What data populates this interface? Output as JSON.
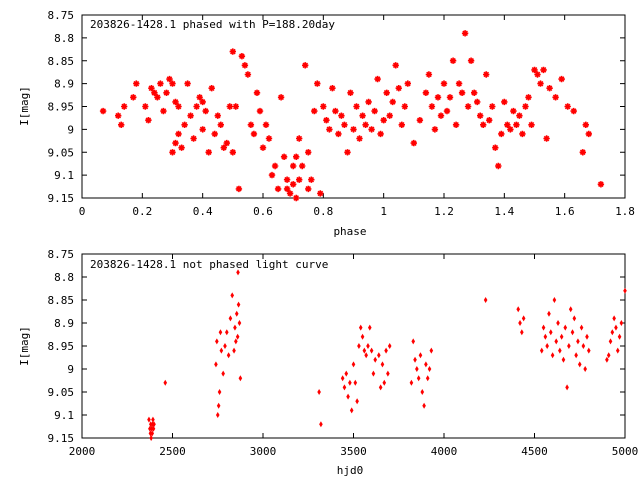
{
  "chart_data": [
    {
      "type": "scatter",
      "title": "203826-1428.1 phased with P=188.20day",
      "xlabel": "phase",
      "ylabel": "I[mag]",
      "xlim": [
        0,
        1.8
      ],
      "ylim": [
        9.15,
        8.75
      ],
      "y_inverted": true,
      "xticks": [
        "0",
        "0.2",
        "0.4",
        "0.6",
        "0.8",
        "1",
        "1.2",
        "1.4",
        "1.6",
        "1.8"
      ],
      "yticks": [
        "8.75",
        "8.8",
        "8.85",
        "8.9",
        "8.95",
        "9",
        "9.05",
        "9.1",
        "9.15"
      ],
      "grid": false,
      "marker": "star",
      "color": "#ff0000",
      "series": [
        {
          "x": [
            0.07,
            0.12,
            0.13,
            0.14,
            0.17,
            0.18,
            0.21,
            0.22,
            0.23,
            0.24,
            0.25,
            0.26,
            0.27,
            0.28,
            0.29,
            0.3,
            0.3,
            0.31,
            0.31,
            0.32,
            0.32,
            0.33,
            0.34,
            0.35,
            0.36,
            0.37,
            0.38,
            0.39,
            0.4,
            0.4,
            0.41,
            0.42,
            0.43,
            0.44,
            0.45,
            0.46,
            0.47,
            0.48,
            0.49,
            0.5,
            0.5,
            0.51,
            0.52,
            0.53,
            0.54,
            0.55,
            0.56,
            0.57,
            0.58,
            0.59,
            0.6,
            0.61,
            0.62,
            0.63,
            0.64,
            0.65,
            0.66,
            0.67,
            0.68,
            0.68,
            0.69,
            0.7,
            0.7,
            0.71,
            0.71,
            0.72,
            0.72,
            0.73,
            0.74,
            0.75,
            0.75,
            0.76,
            0.77,
            0.78,
            0.79,
            0.8,
            0.81,
            0.82,
            0.83,
            0.84,
            0.85,
            0.86,
            0.87,
            0.88,
            0.89,
            0.9,
            0.91,
            0.92,
            0.93,
            0.94,
            0.95,
            0.96,
            0.97,
            0.98,
            0.99,
            1.0,
            1.01,
            1.02,
            1.03,
            1.04,
            1.05,
            1.06,
            1.07,
            1.08,
            1.1,
            1.12,
            1.14,
            1.15,
            1.16,
            1.17,
            1.18,
            1.19,
            1.2,
            1.21,
            1.22,
            1.23,
            1.24,
            1.25,
            1.26,
            1.27,
            1.28,
            1.29,
            1.3,
            1.31,
            1.32,
            1.33,
            1.34,
            1.35,
            1.36,
            1.37,
            1.38,
            1.39,
            1.4,
            1.41,
            1.42,
            1.43,
            1.44,
            1.45,
            1.46,
            1.47,
            1.48,
            1.49,
            1.5,
            1.51,
            1.52,
            1.53,
            1.54,
            1.55,
            1.57,
            1.59,
            1.61,
            1.63,
            1.66,
            1.67,
            1.68,
            1.72
          ],
          "y": [
            8.96,
            8.97,
            8.99,
            8.95,
            8.93,
            8.9,
            8.95,
            8.98,
            8.91,
            8.92,
            8.93,
            8.9,
            8.96,
            8.92,
            8.89,
            8.9,
            9.05,
            8.94,
            9.03,
            8.95,
            9.01,
            9.04,
            8.99,
            8.9,
            8.97,
            9.02,
            8.95,
            8.93,
            8.94,
            9.0,
            8.96,
            9.05,
            8.91,
            9.01,
            8.97,
            8.99,
            9.04,
            9.03,
            8.95,
            8.83,
            9.05,
            8.95,
            9.13,
            8.84,
            8.86,
            8.88,
            8.99,
            9.01,
            8.92,
            8.96,
            9.04,
            8.99,
            9.02,
            9.1,
            9.08,
            9.13,
            8.93,
            9.06,
            9.11,
            9.13,
            9.14,
            9.08,
            9.12,
            9.06,
            9.15,
            9.11,
            9.02,
            9.08,
            8.86,
            9.13,
            9.05,
            9.11,
            8.96,
            8.9,
            9.14,
            8.95,
            8.98,
            9.0,
            8.91,
            8.96,
            9.01,
            8.97,
            8.99,
            9.05,
            8.92,
            9.0,
            8.95,
            9.02,
            8.97,
            8.99,
            8.94,
            9.0,
            8.96,
            8.89,
            9.01,
            8.98,
            8.92,
            8.97,
            8.94,
            8.86,
            8.91,
            8.99,
            8.95,
            8.9,
            9.03,
            8.98,
            8.92,
            8.88,
            8.95,
            9.0,
            8.93,
            8.97,
            8.9,
            8.96,
            8.93,
            8.85,
            8.99,
            8.9,
            8.92,
            8.79,
            8.95,
            8.85,
            8.92,
            8.94,
            8.97,
            8.99,
            8.88,
            8.98,
            8.95,
            9.04,
            9.08,
            9.01,
            8.94,
            8.99,
            9.0,
            8.96,
            8.99,
            8.97,
            9.01,
            8.95,
            8.93,
            8.99,
            8.87,
            8.88,
            8.9,
            8.87,
            9.02,
            8.91,
            8.93,
            8.89,
            8.95,
            8.96,
            9.05,
            8.99,
            9.01,
            9.12
          ]
        }
      ]
    },
    {
      "type": "scatter",
      "title": "203826-1428.1 not phased light curve",
      "xlabel": "hjd0",
      "ylabel": "I[mag]",
      "xlim": [
        2000,
        5000
      ],
      "ylim": [
        9.15,
        8.75
      ],
      "y_inverted": true,
      "xticks": [
        "2000",
        "2500",
        "3000",
        "3500",
        "4000",
        "4500",
        "5000"
      ],
      "yticks": [
        "8.75",
        "8.8",
        "8.85",
        "8.9",
        "8.95",
        "9",
        "9.05",
        "9.1",
        "9.15"
      ],
      "grid": false,
      "marker": "diamond",
      "color": "#ff0000",
      "series": [
        {
          "x": [
            2370,
            2375,
            2378,
            2380,
            2382,
            2385,
            2388,
            2390,
            2392,
            2395,
            2398,
            2460,
            2740,
            2745,
            2750,
            2755,
            2760,
            2765,
            2770,
            2780,
            2790,
            2800,
            2810,
            2820,
            2830,
            2840,
            2845,
            2850,
            2855,
            2860,
            2862,
            2865,
            2870,
            2875,
            3310,
            3320,
            3440,
            3450,
            3460,
            3470,
            3480,
            3490,
            3500,
            3510,
            3520,
            3530,
            3540,
            3550,
            3560,
            3570,
            3580,
            3590,
            3600,
            3610,
            3620,
            3640,
            3650,
            3660,
            3670,
            3680,
            3690,
            3700,
            3820,
            3830,
            3840,
            3850,
            3860,
            3870,
            3880,
            3890,
            3900,
            3910,
            3920,
            3930,
            4230,
            4410,
            4420,
            4430,
            4440,
            4540,
            4550,
            4560,
            4570,
            4580,
            4590,
            4600,
            4610,
            4620,
            4630,
            4640,
            4650,
            4660,
            4670,
            4680,
            4690,
            4700,
            4710,
            4720,
            4730,
            4740,
            4750,
            4760,
            4770,
            4780,
            4790,
            4800,
            4900,
            4910,
            4920,
            4930,
            4940,
            4950,
            4960,
            4970,
            4980,
            5000
          ],
          "y": [
            9.11,
            9.13,
            9.14,
            9.12,
            9.15,
            9.13,
            9.14,
            9.12,
            9.11,
            9.13,
            9.12,
            9.03,
            8.99,
            8.94,
            9.1,
            9.08,
            9.05,
            8.92,
            8.96,
            9.01,
            8.95,
            8.92,
            8.97,
            8.89,
            8.84,
            8.96,
            8.91,
            8.94,
            8.88,
            8.93,
            8.79,
            8.86,
            8.9,
            9.02,
            9.05,
            9.12,
            9.02,
            9.04,
            9.01,
            9.06,
            9.03,
            9.09,
            8.99,
            9.03,
            9.07,
            8.95,
            8.91,
            8.93,
            8.96,
            8.97,
            8.95,
            8.91,
            8.96,
            9.01,
            8.98,
            8.97,
            9.04,
            8.99,
            9.03,
            8.96,
            9.01,
            8.95,
            9.03,
            8.94,
            8.98,
            9.0,
            9.02,
            8.97,
            9.05,
            9.08,
            8.99,
            9.02,
            9.0,
            8.96,
            8.85,
            8.87,
            8.9,
            8.92,
            8.89,
            8.96,
            8.91,
            8.93,
            8.95,
            8.88,
            8.92,
            8.97,
            8.85,
            8.94,
            8.9,
            8.96,
            8.93,
            8.98,
            8.91,
            9.04,
            8.95,
            8.87,
            8.92,
            8.89,
            8.97,
            8.94,
            8.99,
            8.91,
            8.95,
            9.0,
            8.93,
            8.96,
            8.98,
            8.97,
            8.94,
            8.92,
            8.89,
            8.91,
            8.96,
            8.93,
            8.9,
            8.83
          ]
        }
      ]
    }
  ]
}
